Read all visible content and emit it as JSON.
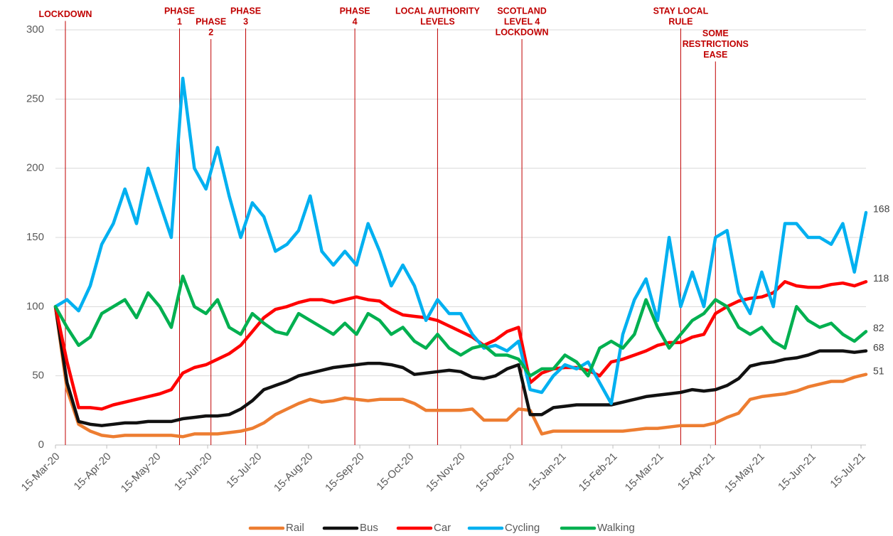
{
  "chart_data": {
    "type": "line",
    "x": [
      "2020-03-15",
      "2020-03-22",
      "2020-03-29",
      "2020-04-05",
      "2020-04-12",
      "2020-04-19",
      "2020-04-26",
      "2020-05-03",
      "2020-05-10",
      "2020-05-17",
      "2020-05-24",
      "2020-05-31",
      "2020-06-07",
      "2020-06-14",
      "2020-06-21",
      "2020-06-28",
      "2020-07-05",
      "2020-07-12",
      "2020-07-19",
      "2020-07-26",
      "2020-08-02",
      "2020-08-09",
      "2020-08-16",
      "2020-08-23",
      "2020-08-30",
      "2020-09-06",
      "2020-09-13",
      "2020-09-20",
      "2020-09-27",
      "2020-10-04",
      "2020-10-11",
      "2020-10-18",
      "2020-10-25",
      "2020-11-01",
      "2020-11-08",
      "2020-11-15",
      "2020-11-22",
      "2020-11-29",
      "2020-12-06",
      "2020-12-13",
      "2020-12-20",
      "2020-12-27",
      "2021-01-03",
      "2021-01-10",
      "2021-01-17",
      "2021-01-24",
      "2021-01-31",
      "2021-02-07",
      "2021-02-14",
      "2021-02-21",
      "2021-02-28",
      "2021-03-07",
      "2021-03-14",
      "2021-03-21",
      "2021-03-28",
      "2021-04-04",
      "2021-04-11",
      "2021-04-18",
      "2021-04-25",
      "2021-05-02",
      "2021-05-09",
      "2021-05-16",
      "2021-05-23",
      "2021-05-30",
      "2021-06-06",
      "2021-06-13",
      "2021-06-20",
      "2021-06-27",
      "2021-07-04",
      "2021-07-11",
      "2021-07-18"
    ],
    "series": [
      {
        "name": "Rail",
        "color": "#ed7d31",
        "values": [
          100,
          40,
          15,
          10,
          7,
          6,
          7,
          7,
          7,
          7,
          7,
          6,
          8,
          8,
          8,
          9,
          10,
          12,
          16,
          22,
          26,
          30,
          33,
          31,
          32,
          34,
          33,
          32,
          33,
          33,
          33,
          30,
          25,
          25,
          25,
          25,
          26,
          18,
          18,
          18,
          26,
          25,
          8,
          10,
          10,
          10,
          10,
          10,
          10,
          10,
          11,
          12,
          12,
          13,
          14,
          14,
          14,
          16,
          20,
          23,
          33,
          35,
          36,
          37,
          39,
          42,
          44,
          46,
          46,
          49,
          51
        ]
      },
      {
        "name": "Bus",
        "color": "#111111",
        "values": [
          100,
          45,
          17,
          15,
          14,
          15,
          16,
          16,
          17,
          17,
          17,
          19,
          20,
          21,
          21,
          22,
          26,
          32,
          40,
          43,
          46,
          50,
          52,
          54,
          56,
          57,
          58,
          59,
          59,
          58,
          56,
          51,
          52,
          53,
          54,
          53,
          49,
          48,
          50,
          55,
          58,
          22,
          22,
          27,
          28,
          29,
          29,
          29,
          29,
          31,
          33,
          35,
          36,
          37,
          38,
          40,
          39,
          40,
          43,
          48,
          57,
          59,
          60,
          62,
          63,
          65,
          68,
          68,
          68,
          67,
          68
        ]
      },
      {
        "name": "Car",
        "color": "#ff0000",
        "values": [
          100,
          60,
          27,
          27,
          26,
          29,
          31,
          33,
          35,
          37,
          40,
          52,
          56,
          58,
          62,
          66,
          72,
          82,
          92,
          98,
          100,
          103,
          105,
          105,
          103,
          105,
          107,
          105,
          104,
          98,
          94,
          93,
          92,
          90,
          86,
          82,
          78,
          72,
          76,
          82,
          85,
          45,
          52,
          55,
          56,
          56,
          54,
          50,
          60,
          62,
          65,
          68,
          72,
          74,
          74,
          78,
          80,
          95,
          100,
          104,
          106,
          107,
          110,
          118,
          115,
          114,
          114,
          116,
          117,
          115,
          118
        ]
      },
      {
        "name": "Cycling",
        "color": "#00b0f0",
        "values": [
          100,
          105,
          97,
          115,
          145,
          160,
          185,
          160,
          200,
          175,
          150,
          265,
          200,
          185,
          215,
          180,
          150,
          175,
          165,
          140,
          145,
          155,
          180,
          140,
          130,
          140,
          130,
          160,
          140,
          115,
          130,
          115,
          90,
          105,
          95,
          95,
          80,
          70,
          72,
          68,
          75,
          40,
          38,
          50,
          58,
          55,
          60,
          45,
          30,
          80,
          105,
          120,
          90,
          150,
          100,
          125,
          100,
          150,
          155,
          110,
          95,
          125,
          100,
          160,
          160,
          150,
          150,
          145,
          160,
          125,
          168
        ]
      },
      {
        "name": "Walking",
        "color": "#00b050",
        "values": [
          100,
          85,
          72,
          78,
          95,
          100,
          105,
          92,
          110,
          100,
          85,
          122,
          100,
          95,
          105,
          85,
          80,
          95,
          88,
          82,
          80,
          95,
          90,
          85,
          80,
          88,
          80,
          95,
          90,
          80,
          85,
          75,
          70,
          80,
          70,
          65,
          70,
          72,
          65,
          65,
          62,
          50,
          55,
          55,
          65,
          60,
          50,
          70,
          75,
          70,
          80,
          105,
          85,
          70,
          80,
          90,
          95,
          105,
          100,
          85,
          80,
          85,
          75,
          70,
          100,
          90,
          85,
          88,
          80,
          75,
          82
        ]
      }
    ],
    "xlim": [
      "2020-03-15",
      "2021-07-18"
    ],
    "xticks": [
      {
        "value": "2020-03-15",
        "label": "15-Mar-20"
      },
      {
        "value": "2020-04-15",
        "label": "15-Apr-20"
      },
      {
        "value": "2020-05-15",
        "label": "15-May-20"
      },
      {
        "value": "2020-06-15",
        "label": "15-Jun-20"
      },
      {
        "value": "2020-07-15",
        "label": "15-Jul-20"
      },
      {
        "value": "2020-08-15",
        "label": "15-Aug-20"
      },
      {
        "value": "2020-09-15",
        "label": "15-Sep-20"
      },
      {
        "value": "2020-10-15",
        "label": "15-Oct-20"
      },
      {
        "value": "2020-11-15",
        "label": "15-Nov-20"
      },
      {
        "value": "2020-12-15",
        "label": "15-Dec-20"
      },
      {
        "value": "2021-01-15",
        "label": "15-Jan-21"
      },
      {
        "value": "2021-02-15",
        "label": "15-Feb-21"
      },
      {
        "value": "2021-03-15",
        "label": "15-Mar-21"
      },
      {
        "value": "2021-04-15",
        "label": "15-Apr-21"
      },
      {
        "value": "2021-05-15",
        "label": "15-May-21"
      },
      {
        "value": "2021-06-15",
        "label": "15-Jun-21"
      },
      {
        "value": "2021-07-15",
        "label": "15-Jul-21"
      }
    ],
    "ylim": [
      0,
      300
    ],
    "yticks": [
      0,
      50,
      100,
      150,
      200,
      250,
      300
    ],
    "grid": true,
    "legend": "bottom",
    "annotations": [
      {
        "x": "2020-03-21",
        "lines": [
          "LOCKDOWN"
        ]
      },
      {
        "x": "2020-05-29",
        "lines": [
          "PHASE",
          "1"
        ]
      },
      {
        "x": "2020-06-17",
        "lines": [
          "PHASE",
          "2"
        ]
      },
      {
        "x": "2020-07-08",
        "lines": [
          "PHASE",
          "3"
        ]
      },
      {
        "x": "2020-09-12",
        "lines": [
          "PHASE",
          "4"
        ]
      },
      {
        "x": "2020-11-01",
        "lines": [
          "LOCAL AUTHORITY",
          "LEVELS"
        ]
      },
      {
        "x": "2020-12-22",
        "lines": [
          "SCOTLAND",
          "LEVEL 4",
          "LOCKDOWN"
        ]
      },
      {
        "x": "2021-03-28",
        "lines": [
          "STAY LOCAL",
          "RULE"
        ]
      },
      {
        "x": "2021-04-18",
        "lines": [
          "SOME",
          "RESTRICTIONS",
          "EASE"
        ]
      }
    ]
  }
}
